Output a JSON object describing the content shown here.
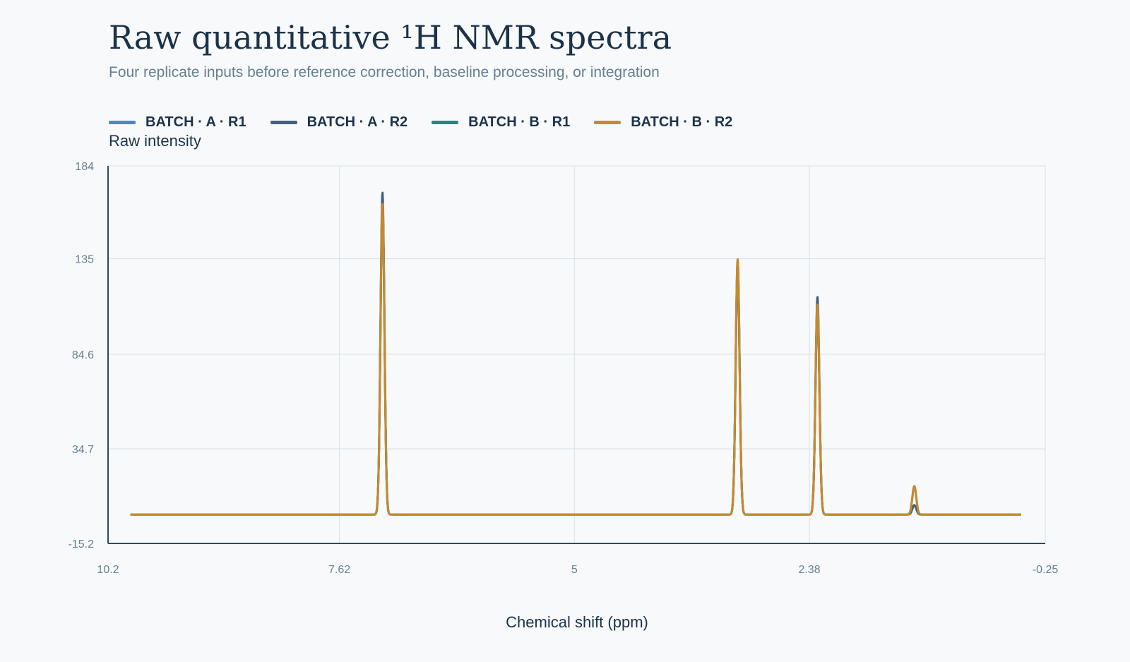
{
  "title": "Raw quantitative ¹H NMR spectra",
  "subtitle": "Four replicate inputs before reference correction, baseline processing, or integration",
  "chart_data": {
    "type": "line",
    "title": "Raw quantitative ¹H NMR spectra",
    "subtitle": "Four replicate inputs before reference correction, baseline processing, or integration",
    "xlabel": "Chemical shift (ppm)",
    "ylabel": "Raw intensity",
    "x_reversed": true,
    "xlim": [
      10.2,
      -0.25
    ],
    "ylim": [
      -15.2,
      184
    ],
    "x_ticks": [
      "10.2",
      "7.62",
      "5",
      "2.38",
      "-0.25"
    ],
    "x_tick_values": [
      10.2,
      7.62,
      5,
      2.38,
      -0.25
    ],
    "y_ticks": [
      "184",
      "135",
      "84.6",
      "34.7",
      "-15.2"
    ],
    "y_tick_values": [
      184,
      135,
      84.6,
      34.7,
      -15.2
    ],
    "grid": true,
    "legend_position": "top",
    "x_range": [
      9.95,
      0.02
    ],
    "baseline": 0,
    "series": [
      {
        "name": "BATCH · A · R1",
        "color": "#4f86c6",
        "peaks": [
          {
            "ppm": 7.14,
            "height": 164
          },
          {
            "ppm": 3.18,
            "height": 130
          },
          {
            "ppm": 2.29,
            "height": 111
          },
          {
            "ppm": 1.21,
            "height": 5
          }
        ]
      },
      {
        "name": "BATCH · A · R2",
        "color": "#44617d",
        "peaks": [
          {
            "ppm": 7.14,
            "height": 170
          },
          {
            "ppm": 3.18,
            "height": 132
          },
          {
            "ppm": 2.29,
            "height": 115
          },
          {
            "ppm": 1.21,
            "height": 5
          }
        ]
      },
      {
        "name": "BATCH · B · R1",
        "color": "#1f8a86",
        "peaks": [
          {
            "ppm": 7.14,
            "height": 163
          },
          {
            "ppm": 3.18,
            "height": 134
          },
          {
            "ppm": 2.29,
            "height": 109
          },
          {
            "ppm": 1.21,
            "height": 15
          }
        ]
      },
      {
        "name": "BATCH · B · R2",
        "color": "#c8892e",
        "peaks": [
          {
            "ppm": 7.14,
            "height": 164
          },
          {
            "ppm": 3.18,
            "height": 135
          },
          {
            "ppm": 2.29,
            "height": 111
          },
          {
            "ppm": 1.21,
            "height": 15
          }
        ]
      }
    ]
  }
}
